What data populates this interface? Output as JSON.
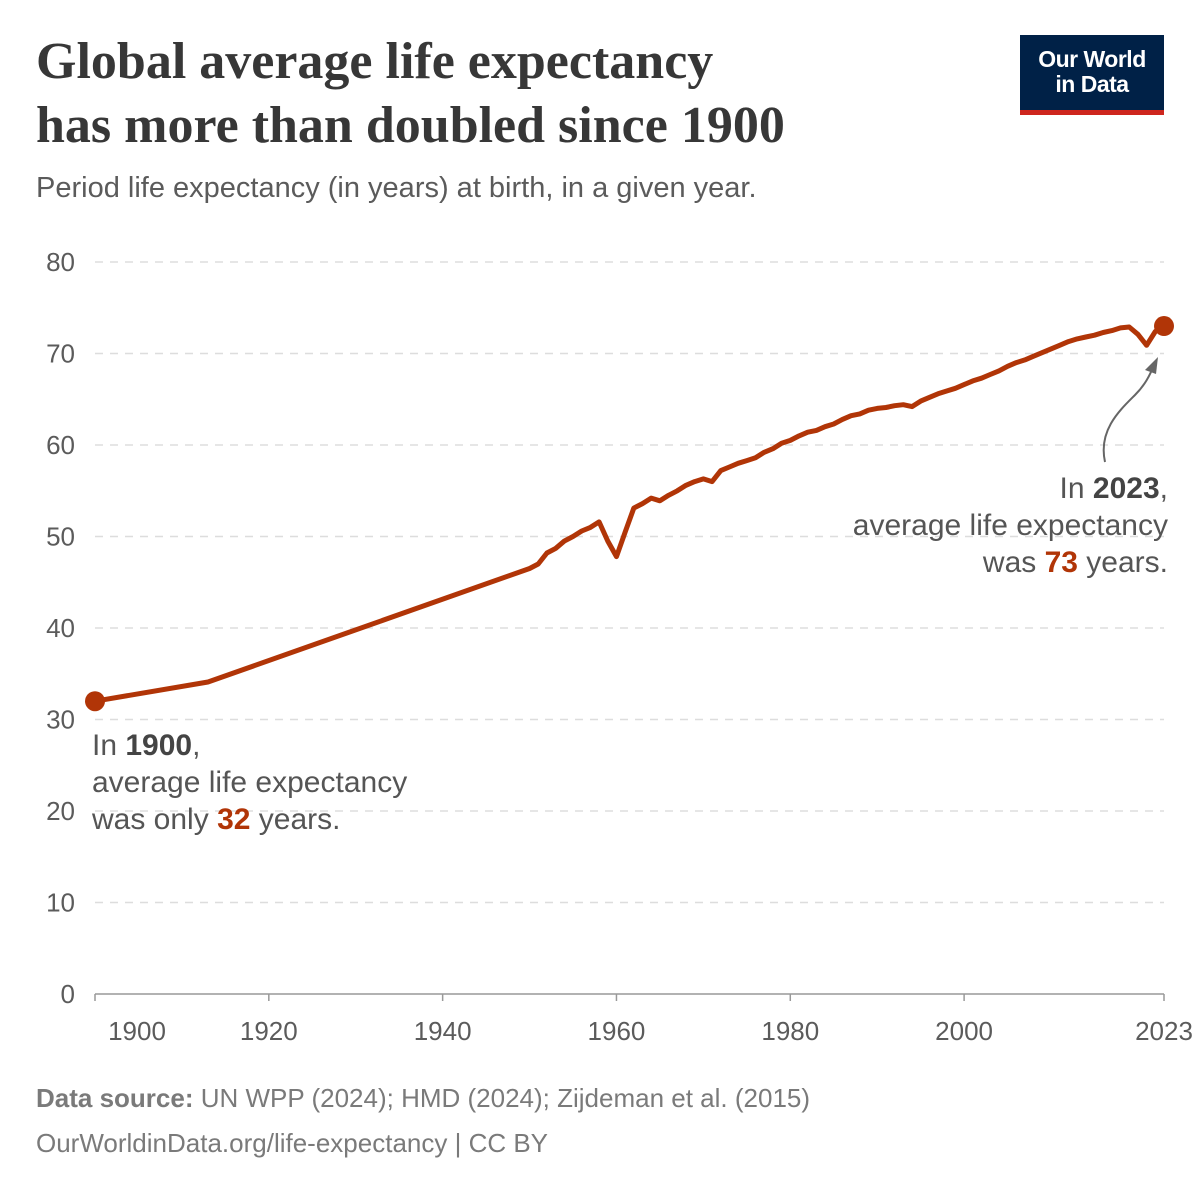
{
  "header": {
    "title_line1": "Global average life expectancy",
    "title_line2": "has more than doubled since 1900",
    "subtitle": "Period life expectancy (in years) at birth, in a given year.",
    "logo_line1": "Our World",
    "logo_line2": "in Data"
  },
  "annotations": {
    "left": {
      "prefix": "In ",
      "year": "1900",
      "suffix": ",",
      "line2": "average life expectancy",
      "line3_prefix": "was only ",
      "value": "32",
      "line3_suffix": " years."
    },
    "right": {
      "prefix": "In ",
      "year": "2023",
      "suffix": ",",
      "line2": "average life expectancy",
      "line3_prefix": "was ",
      "value": "73",
      "line3_suffix": " years."
    }
  },
  "footer": {
    "source_label": "Data source:",
    "source_text": " UN WPP (2024); HMD (2024); Zijdeman et al. (2015)",
    "url_license": "OurWorldinData.org/life-expectancy | CC BY"
  },
  "colors": {
    "line": "#b13507",
    "grid": "#dddddd",
    "text": "#5b5b5b",
    "logo_bg": "#002147",
    "logo_accent": "#ce261e"
  },
  "chart_data": {
    "type": "line",
    "title": "Global average life expectancy has more than doubled since 1900",
    "subtitle": "Period life expectancy (in years) at birth, in a given year.",
    "xlim": [
      1900,
      2023
    ],
    "ylim": [
      0,
      80
    ],
    "x_ticks": [
      1900,
      1920,
      1940,
      1960,
      1980,
      2000,
      2023
    ],
    "y_ticks": [
      0,
      10,
      20,
      30,
      40,
      50,
      60,
      70,
      80
    ],
    "grid": "horizontal dashed",
    "highlight_points": [
      [
        1900,
        32
      ],
      [
        2023,
        73
      ]
    ],
    "x": [
      1900,
      1913,
      1950,
      1951,
      1952,
      1953,
      1954,
      1955,
      1956,
      1957,
      1958,
      1959,
      1960,
      1961,
      1962,
      1963,
      1964,
      1965,
      1966,
      1967,
      1968,
      1969,
      1970,
      1971,
      1972,
      1973,
      1974,
      1975,
      1976,
      1977,
      1978,
      1979,
      1980,
      1981,
      1982,
      1983,
      1984,
      1985,
      1986,
      1987,
      1988,
      1989,
      1990,
      1991,
      1992,
      1993,
      1994,
      1995,
      1996,
      1997,
      1998,
      1999,
      2000,
      2001,
      2002,
      2003,
      2004,
      2005,
      2006,
      2007,
      2008,
      2009,
      2010,
      2011,
      2012,
      2013,
      2014,
      2015,
      2016,
      2017,
      2018,
      2019,
      2020,
      2021,
      2022,
      2023
    ],
    "y": [
      32.0,
      34.1,
      46.5,
      47.0,
      48.2,
      48.7,
      49.5,
      50.0,
      50.6,
      51.0,
      51.6,
      49.5,
      47.8,
      50.5,
      53.1,
      53.6,
      54.2,
      53.9,
      54.5,
      55.0,
      55.6,
      56.0,
      56.3,
      56.0,
      57.2,
      57.6,
      58.0,
      58.3,
      58.6,
      59.2,
      59.6,
      60.2,
      60.5,
      61.0,
      61.4,
      61.6,
      62.0,
      62.3,
      62.8,
      63.2,
      63.4,
      63.8,
      64.0,
      64.1,
      64.3,
      64.4,
      64.2,
      64.8,
      65.2,
      65.6,
      65.9,
      66.2,
      66.6,
      67.0,
      67.3,
      67.7,
      68.1,
      68.6,
      69.0,
      69.3,
      69.7,
      70.1,
      70.5,
      70.9,
      71.3,
      71.6,
      71.8,
      72.0,
      72.3,
      72.5,
      72.8,
      72.9,
      72.1,
      70.9,
      72.4,
      73.2
    ]
  }
}
